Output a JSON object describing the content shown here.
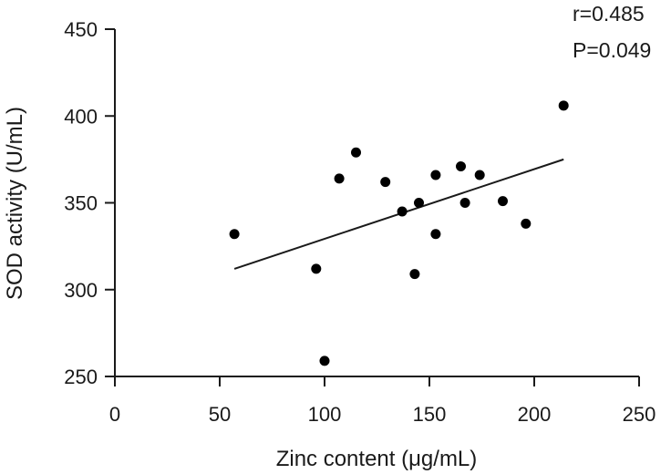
{
  "chart_data": {
    "type": "scatter",
    "xlabel": "Zinc content (μg/mL)",
    "ylabel": "SOD activity (U/mL)",
    "xlim": [
      0,
      250
    ],
    "ylim": [
      250,
      450
    ],
    "x_ticks": [
      0,
      50,
      100,
      150,
      200,
      250
    ],
    "y_ticks": [
      250,
      300,
      350,
      400,
      450
    ],
    "grid": false,
    "points": [
      {
        "x": 57,
        "y": 332
      },
      {
        "x": 96,
        "y": 312
      },
      {
        "x": 100,
        "y": 259
      },
      {
        "x": 107,
        "y": 364
      },
      {
        "x": 115,
        "y": 379
      },
      {
        "x": 129,
        "y": 362
      },
      {
        "x": 137,
        "y": 345
      },
      {
        "x": 143,
        "y": 309
      },
      {
        "x": 145,
        "y": 350
      },
      {
        "x": 153,
        "y": 332
      },
      {
        "x": 153,
        "y": 366
      },
      {
        "x": 165,
        "y": 371
      },
      {
        "x": 167,
        "y": 350
      },
      {
        "x": 174,
        "y": 366
      },
      {
        "x": 185,
        "y": 351
      },
      {
        "x": 196,
        "y": 338
      },
      {
        "x": 214,
        "y": 406
      }
    ],
    "trendline": {
      "x": [
        57,
        214
      ],
      "y": [
        312,
        375
      ]
    },
    "annotations": [
      "r=0.485",
      "P=0.049"
    ]
  }
}
